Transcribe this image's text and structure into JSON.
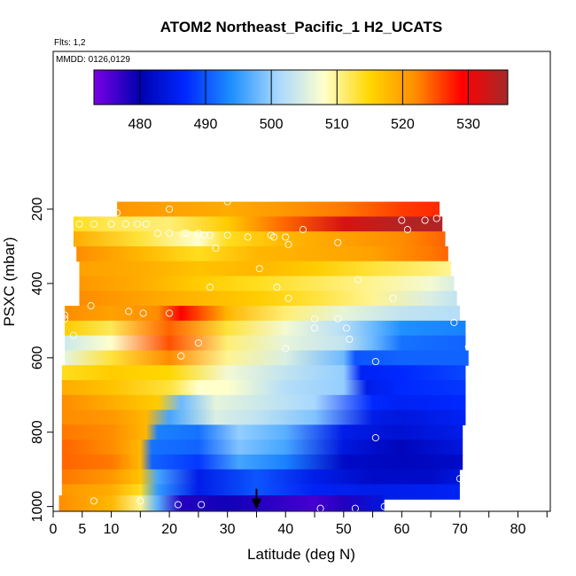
{
  "chart_data": {
    "type": "heatmap",
    "title": "ATOM2 Northeast_Pacific_1 H2_UCATS",
    "annotations": [
      "Flts: 1,2",
      "MMDD: 0126,0129"
    ],
    "xlabel": "Latitude (deg N)",
    "ylabel": "PSXC (mbar)",
    "xlim": [
      0,
      85
    ],
    "ylim": [
      1000,
      100
    ],
    "y_reversed": true,
    "x_ticks": [
      0,
      5,
      10,
      20,
      30,
      40,
      50,
      60,
      70,
      80
    ],
    "y_ticks": [
      200,
      400,
      600,
      800,
      1000
    ],
    "grid": false,
    "colorbar": {
      "placement": "top-inside",
      "range": [
        473,
        536
      ],
      "ticks": [
        480,
        490,
        500,
        510,
        520,
        530
      ],
      "colors": [
        "#7a00e6",
        "#0000b0",
        "#0028ff",
        "#1e90ff",
        "#a8d8ff",
        "#ffffcc",
        "#ffd700",
        "#ff8c00",
        "#ff0000",
        "#a52a2a"
      ]
    },
    "marker": {
      "type": "arrow-down",
      "x": 35,
      "y": 1000
    },
    "bands": [
      {
        "p": 200,
        "lat_range": [
          11,
          66.5
        ],
        "knots": [
          [
            11,
            521
          ],
          [
            20,
            520
          ],
          [
            30,
            519
          ],
          [
            40,
            521
          ],
          [
            50,
            523
          ],
          [
            60,
            526
          ],
          [
            66.5,
            527
          ]
        ]
      },
      {
        "p": 240,
        "lat_range": [
          3.5,
          67
        ],
        "knots": [
          [
            3.5,
            514
          ],
          [
            10,
            512
          ],
          [
            20,
            511
          ],
          [
            30,
            516
          ],
          [
            40,
            524
          ],
          [
            50,
            532
          ],
          [
            60,
            535
          ],
          [
            67,
            535
          ]
        ]
      },
      {
        "p": 280,
        "lat_range": [
          3.5,
          67.5
        ],
        "knots": [
          [
            3.5,
            519
          ],
          [
            15,
            513
          ],
          [
            25,
            508
          ],
          [
            30,
            514
          ],
          [
            40,
            518
          ],
          [
            50,
            520
          ],
          [
            60,
            522
          ],
          [
            67.5,
            524
          ]
        ]
      },
      {
        "p": 320,
        "lat_range": [
          4,
          68
        ],
        "knots": [
          [
            4,
            522
          ],
          [
            15,
            518
          ],
          [
            25,
            514
          ],
          [
            35,
            518
          ],
          [
            45,
            519
          ],
          [
            55,
            520
          ],
          [
            65,
            523
          ],
          [
            68,
            524
          ]
        ]
      },
      {
        "p": 360,
        "lat_range": [
          4.5,
          68.5
        ],
        "knots": [
          [
            4.5,
            520
          ],
          [
            15,
            519
          ],
          [
            25,
            517
          ],
          [
            35,
            518
          ],
          [
            45,
            516
          ],
          [
            55,
            513
          ],
          [
            65,
            511
          ],
          [
            68.5,
            510
          ]
        ]
      },
      {
        "p": 400,
        "lat_range": [
          4.5,
          69
        ],
        "knots": [
          [
            4.5,
            521
          ],
          [
            15,
            519
          ],
          [
            25,
            516
          ],
          [
            35,
            514
          ],
          [
            45,
            512
          ],
          [
            55,
            510
          ],
          [
            65,
            507
          ],
          [
            69,
            505
          ]
        ]
      },
      {
        "p": 440,
        "lat_range": [
          4.5,
          69.5
        ],
        "knots": [
          [
            4.5,
            522
          ],
          [
            15,
            520
          ],
          [
            25,
            518
          ],
          [
            35,
            516
          ],
          [
            45,
            513
          ],
          [
            55,
            510
          ],
          [
            65,
            505
          ],
          [
            69.5,
            503
          ]
        ]
      },
      {
        "p": 480,
        "lat_range": [
          2,
          70
        ],
        "knots": [
          [
            2,
            522
          ],
          [
            10,
            520
          ],
          [
            18,
            522
          ],
          [
            22,
            529
          ],
          [
            30,
            518
          ],
          [
            40,
            511
          ],
          [
            50,
            506
          ],
          [
            60,
            503
          ],
          [
            70,
            502
          ]
        ]
      },
      {
        "p": 520,
        "lat_range": [
          2,
          71
        ],
        "knots": [
          [
            2,
            516
          ],
          [
            10,
            512
          ],
          [
            20,
            524
          ],
          [
            30,
            513
          ],
          [
            40,
            507
          ],
          [
            50,
            502
          ],
          [
            55,
            498
          ],
          [
            60,
            494
          ],
          [
            71,
            493
          ]
        ]
      },
      {
        "p": 560,
        "lat_range": [
          2,
          71
        ],
        "knots": [
          [
            2,
            504
          ],
          [
            10,
            508
          ],
          [
            20,
            525
          ],
          [
            30,
            511
          ],
          [
            40,
            506
          ],
          [
            50,
            503
          ],
          [
            55,
            498
          ],
          [
            60,
            492
          ],
          [
            71,
            491
          ]
        ]
      },
      {
        "p": 600,
        "lat_range": [
          2,
          71.5
        ],
        "knots": [
          [
            2,
            506
          ],
          [
            10,
            513
          ],
          [
            20,
            522
          ],
          [
            30,
            510
          ],
          [
            40,
            505
          ],
          [
            50,
            498
          ],
          [
            52,
            490
          ],
          [
            60,
            491
          ],
          [
            71.5,
            491
          ]
        ]
      },
      {
        "p": 640,
        "lat_range": [
          1.5,
          71
        ],
        "knots": [
          [
            1.5,
            514
          ],
          [
            10,
            516
          ],
          [
            20,
            515
          ],
          [
            30,
            507
          ],
          [
            40,
            503
          ],
          [
            50,
            500
          ],
          [
            53,
            486
          ],
          [
            60,
            487
          ],
          [
            71,
            489
          ]
        ]
      },
      {
        "p": 680,
        "lat_range": [
          1.5,
          71
        ],
        "knots": [
          [
            1.5,
            519
          ],
          [
            10,
            517
          ],
          [
            20,
            513
          ],
          [
            25,
            508
          ],
          [
            30,
            508
          ],
          [
            40,
            502
          ],
          [
            50,
            500
          ],
          [
            54,
            485
          ],
          [
            60,
            487
          ],
          [
            71,
            488
          ]
        ]
      },
      {
        "p": 720,
        "lat_range": [
          1.5,
          71
        ],
        "knots": [
          [
            1.5,
            522
          ],
          [
            10,
            519
          ],
          [
            18,
            516
          ],
          [
            22,
            498
          ],
          [
            28,
            506
          ],
          [
            35,
            504
          ],
          [
            45,
            501
          ],
          [
            55,
            487
          ],
          [
            60,
            486
          ],
          [
            71,
            487
          ]
        ]
      },
      {
        "p": 760,
        "lat_range": [
          1.5,
          71
        ],
        "knots": [
          [
            1.5,
            522
          ],
          [
            10,
            521
          ],
          [
            16,
            518
          ],
          [
            20,
            496
          ],
          [
            28,
            505
          ],
          [
            35,
            503
          ],
          [
            45,
            499
          ],
          [
            55,
            485
          ],
          [
            60,
            484
          ],
          [
            71,
            486
          ]
        ]
      },
      {
        "p": 800,
        "lat_range": [
          1.5,
          70.5
        ],
        "knots": [
          [
            1.5,
            523
          ],
          [
            10,
            522
          ],
          [
            16,
            518
          ],
          [
            18,
            493
          ],
          [
            25,
            492
          ],
          [
            32,
            500
          ],
          [
            40,
            497
          ],
          [
            50,
            485
          ],
          [
            60,
            483
          ],
          [
            70.5,
            485
          ]
        ]
      },
      {
        "p": 840,
        "lat_range": [
          1.5,
          70.5
        ],
        "knots": [
          [
            1.5,
            524
          ],
          [
            10,
            522
          ],
          [
            15,
            518
          ],
          [
            17,
            492
          ],
          [
            25,
            491
          ],
          [
            32,
            499
          ],
          [
            40,
            496
          ],
          [
            50,
            484
          ],
          [
            60,
            481
          ],
          [
            70.5,
            484
          ]
        ]
      },
      {
        "p": 880,
        "lat_range": [
          1.5,
          70.5
        ],
        "knots": [
          [
            1.5,
            524
          ],
          [
            10,
            523
          ],
          [
            15,
            518
          ],
          [
            17,
            491
          ],
          [
            25,
            488
          ],
          [
            32,
            496
          ],
          [
            40,
            493
          ],
          [
            50,
            482
          ],
          [
            60,
            481
          ],
          [
            70.5,
            482
          ]
        ]
      },
      {
        "p": 920,
        "lat_range": [
          1.5,
          70
        ],
        "knots": [
          [
            1.5,
            523
          ],
          [
            10,
            521
          ],
          [
            15,
            517
          ],
          [
            18,
            496
          ],
          [
            25,
            485
          ],
          [
            35,
            490
          ],
          [
            45,
            485
          ],
          [
            55,
            482
          ],
          [
            65,
            482
          ],
          [
            70,
            484
          ]
        ]
      },
      {
        "p": 960,
        "lat_range": [
          1.5,
          70
        ],
        "knots": [
          [
            1.5,
            521
          ],
          [
            10,
            519
          ],
          [
            15,
            514
          ],
          [
            18,
            495
          ],
          [
            25,
            485
          ],
          [
            35,
            490
          ],
          [
            45,
            486
          ],
          [
            55,
            485
          ],
          [
            70,
            486
          ]
        ]
      },
      {
        "p": 990,
        "lat_range": [
          1,
          57
        ],
        "knots": [
          [
            1,
            522
          ],
          [
            10,
            518
          ],
          [
            15,
            510
          ],
          [
            18,
            497
          ],
          [
            22,
            478
          ],
          [
            30,
            479
          ],
          [
            40,
            477
          ],
          [
            45,
            476
          ],
          [
            50,
            478
          ],
          [
            57,
            484
          ]
        ]
      }
    ],
    "points": [
      [
        11,
        210
      ],
      [
        20,
        200
      ],
      [
        30,
        180
      ],
      [
        4.5,
        240
      ],
      [
        7,
        240
      ],
      [
        10,
        240
      ],
      [
        12.5,
        240
      ],
      [
        14.5,
        240
      ],
      [
        16,
        240
      ],
      [
        60,
        230
      ],
      [
        64,
        230
      ],
      [
        66,
        225
      ],
      [
        61,
        255
      ],
      [
        43,
        255
      ],
      [
        18,
        265
      ],
      [
        20,
        265
      ],
      [
        22.5,
        265
      ],
      [
        23,
        265
      ],
      [
        25,
        265
      ],
      [
        26,
        270
      ],
      [
        27,
        270
      ],
      [
        30,
        270
      ],
      [
        33.5,
        275
      ],
      [
        38,
        275
      ],
      [
        37.5,
        270
      ],
      [
        40,
        275
      ],
      [
        40.5,
        295
      ],
      [
        49,
        290
      ],
      [
        28,
        305
      ],
      [
        35.5,
        360
      ],
      [
        27,
        410
      ],
      [
        38.5,
        410
      ],
      [
        40.5,
        440
      ],
      [
        52.5,
        390
      ],
      [
        58.5,
        440
      ],
      [
        2,
        485
      ],
      [
        2,
        495
      ],
      [
        6.5,
        460
      ],
      [
        13,
        475
      ],
      [
        15.5,
        480
      ],
      [
        20,
        480
      ],
      [
        45,
        495
      ],
      [
        49,
        495
      ],
      [
        45,
        520
      ],
      [
        50.5,
        520
      ],
      [
        71,
        470
      ],
      [
        69,
        505
      ],
      [
        3.5,
        540
      ],
      [
        25,
        560
      ],
      [
        22,
        595
      ],
      [
        40,
        575
      ],
      [
        51,
        550
      ],
      [
        55.5,
        610
      ],
      [
        71.5,
        570
      ],
      [
        55.5,
        815
      ],
      [
        70,
        925
      ],
      [
        7,
        985
      ],
      [
        15,
        985
      ],
      [
        21.5,
        995
      ],
      [
        25.5,
        995
      ],
      [
        46,
        1005
      ],
      [
        52,
        1005
      ],
      [
        57,
        1000
      ]
    ]
  }
}
